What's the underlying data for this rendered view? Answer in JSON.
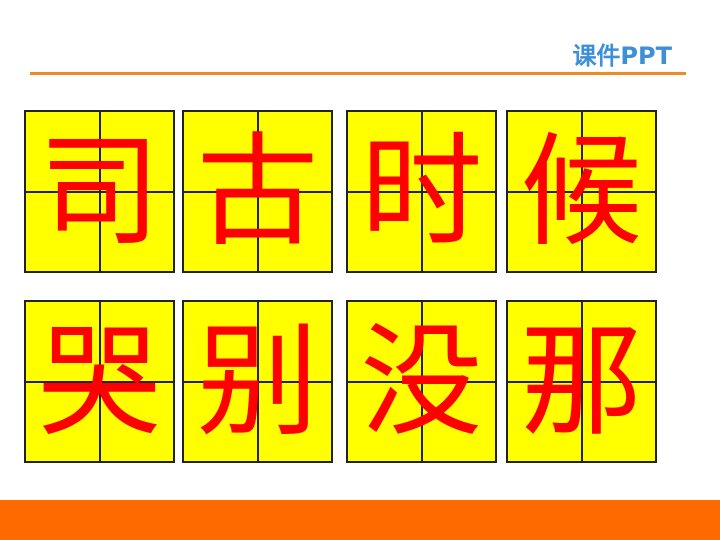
{
  "header": {
    "brand": "课件PPT"
  },
  "tiles": [
    {
      "char": "司"
    },
    {
      "char": "古"
    },
    {
      "char": "时"
    },
    {
      "char": "候"
    },
    {
      "char": "哭"
    },
    {
      "char": "别"
    },
    {
      "char": "没"
    },
    {
      "char": "那"
    }
  ],
  "colors": {
    "brand_text": "#3d8fd6",
    "rule": "#f08a24",
    "tile_background": "#ffff00",
    "tile_grid": "#222222",
    "character": "#ff0000",
    "footer_bar": "#ff6a00"
  }
}
